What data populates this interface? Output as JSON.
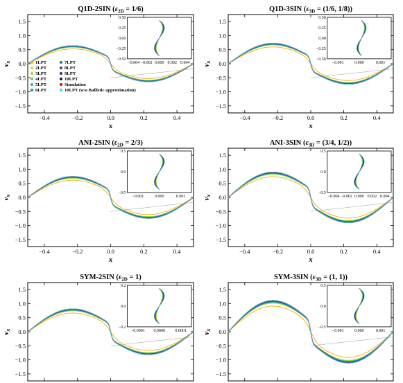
{
  "colors": {
    "lpt": [
      "#f2a900",
      "#d9d21a",
      "#a8d53a",
      "#5cc96a",
      "#2ab3a0",
      "#1f8fae",
      "#2a6aa0",
      "#2c4790",
      "#3b2a7a",
      "#1a0f2a"
    ],
    "simulation": "#e0001b",
    "no_ballistic": "#33d6f0",
    "grey": "#9a9a9a"
  },
  "legend": {
    "entries": [
      "1LPT",
      "2LPT",
      "3LPT",
      "4LPT",
      "5LPT",
      "6LPT",
      "7LPT",
      "8LPT",
      "9LPT",
      "10LPT",
      "Simulation",
      "10LPT (w/o Ballistic approximation)"
    ]
  },
  "chart_data": [
    {
      "type": "line",
      "title": "Q1D-2SIN (ε_2D = 1/6)",
      "xlabel": "x",
      "ylabel": "v_x",
      "xlim": [
        -0.5,
        0.5
      ],
      "ylim": [
        -1.75,
        1.75
      ],
      "xticks": [
        "−0.4",
        "−0.2",
        "0.0",
        "0.2",
        "0.4"
      ],
      "yticks": [
        "1.5",
        "1.0",
        "0.5",
        "0.0",
        "−0.5",
        "−1.0",
        "−1.5"
      ],
      "peak_velocity": 0.75,
      "series_count": 12,
      "inset": {
        "xlabel": "x",
        "ylabel": "v_x",
        "xlim": [
          -0.004,
          0.004
        ],
        "ylim": [
          -0.5,
          0.5
        ],
        "xticks": [
          "−0.004",
          "−0.002",
          "0.000",
          "0.002",
          "0.004"
        ],
        "yticks": [
          "0.50",
          "0.25",
          "0.00",
          "−0.25",
          "−0.50"
        ]
      }
    },
    {
      "type": "line",
      "title": "Q1D-3SIN (ε_3D = (1/6, 1/8))",
      "xlabel": "x",
      "ylabel": "v_x",
      "xlim": [
        -0.5,
        0.5
      ],
      "ylim": [
        -1.75,
        1.75
      ],
      "xticks": [
        "−0.4",
        "−0.2",
        "0.0",
        "0.2",
        "0.4"
      ],
      "yticks": [
        "1.5",
        "1.0",
        "0.5",
        "0.0",
        "−0.5",
        "−1.0",
        "−1.5"
      ],
      "peak_velocity": 0.85,
      "series_count": 12,
      "inset": {
        "xlabel": "x",
        "ylabel": "v_x",
        "xlim": [
          -0.0015,
          0.0013
        ],
        "ylim": [
          -0.5,
          0.5
        ],
        "xticks": [
          "−0.001",
          "0.000",
          "0.001"
        ],
        "yticks": [
          "0.50",
          "0.25",
          "0.00",
          "−0.25",
          "−0.50"
        ]
      }
    },
    {
      "type": "line",
      "title": "ANI-2SIN (ε_2D = 2/3)",
      "xlabel": "x",
      "ylabel": "v_x",
      "xlim": [
        -0.5,
        0.5
      ],
      "ylim": [
        -1.75,
        1.75
      ],
      "xticks": [
        "−0.4",
        "−0.2",
        "0.0",
        "0.2",
        "0.4"
      ],
      "yticks": [
        "1.5",
        "1.0",
        "0.5",
        "0.0",
        "−0.5",
        "−1.0",
        "−1.5"
      ],
      "peak_velocity": 0.87,
      "series_count": 12,
      "inset": {
        "xlabel": "x",
        "ylabel": "v_x",
        "xlim": [
          -0.0013,
          0.0013
        ],
        "ylim": [
          -0.5,
          0.5
        ],
        "xticks": [
          "−0.001",
          "0.000",
          "0.001"
        ],
        "yticks": [
          "0.5",
          "0.0",
          "−0.5"
        ]
      }
    },
    {
      "type": "line",
      "title": "ANI-3SIN (ε_3D = (3/4, 1/2))",
      "xlabel": "x",
      "ylabel": "v_x",
      "xlim": [
        -0.5,
        0.5
      ],
      "ylim": [
        -1.75,
        1.75
      ],
      "xticks": [
        "−0.4",
        "−0.2",
        "0.0",
        "0.2",
        "0.4"
      ],
      "yticks": [
        "1.5",
        "1.0",
        "0.5",
        "0.0",
        "−0.5",
        "−1.0",
        "−1.5"
      ],
      "peak_velocity": 1.05,
      "series_count": 12,
      "inset": {
        "xlabel": "x",
        "ylabel": "v_x",
        "xlim": [
          -0.0045,
          0.0045
        ],
        "ylim": [
          -0.5,
          0.5
        ],
        "xticks": [
          "−0.004",
          "−0.002",
          "0.000",
          "0.002",
          "0.004"
        ],
        "yticks": [
          "0.5",
          "0.0",
          "−0.5"
        ]
      }
    },
    {
      "type": "line",
      "title": "SYM-2SIN (ε_2D = 1)",
      "xlabel": "x",
      "ylabel": "v_x",
      "xlim": [
        -0.5,
        0.5
      ],
      "ylim": [
        -1.75,
        1.75
      ],
      "xticks": [
        "−0.4",
        "−0.2",
        "0.0",
        "0.2",
        "0.4"
      ],
      "yticks": [
        "1.5",
        "1.0",
        "0.5",
        "0.0",
        "−0.5",
        "−1.0",
        "−1.5"
      ],
      "peak_velocity": 0.95,
      "series_count": 12,
      "inset": {
        "xlabel": "x",
        "ylabel": "v_x",
        "xlim": [
          -0.00013,
          0.00013
        ],
        "ylim": [
          -0.3,
          0.3
        ],
        "xticks": [
          "−0.0001",
          "0.0000",
          "0.0001"
        ],
        "yticks": [
          "0.2",
          "0.0",
          "−0.2"
        ]
      }
    },
    {
      "type": "line",
      "title": "SYM-3SIN (ε_3D = (1, 1))",
      "xlabel": "x",
      "ylabel": "v_x",
      "xlim": [
        -0.5,
        0.5
      ],
      "ylim": [
        -1.75,
        1.75
      ],
      "xticks": [
        "−0.4",
        "−0.2",
        "0.0",
        "0.2",
        "0.4"
      ],
      "yticks": [
        "1.5",
        "1.0",
        "0.5",
        "0.0",
        "−0.5",
        "−1.0",
        "−1.5"
      ],
      "peak_velocity": 1.3,
      "series_count": 12,
      "inset": {
        "xlabel": "x",
        "ylabel": "v_x",
        "xlim": [
          -0.0015,
          0.0015
        ],
        "ylim": [
          -0.6,
          0.6
        ],
        "xticks": [
          "−0.001",
          "0.000",
          "0.001"
        ],
        "yticks": [
          "0.5",
          "0.0",
          "−0.5"
        ]
      }
    }
  ]
}
